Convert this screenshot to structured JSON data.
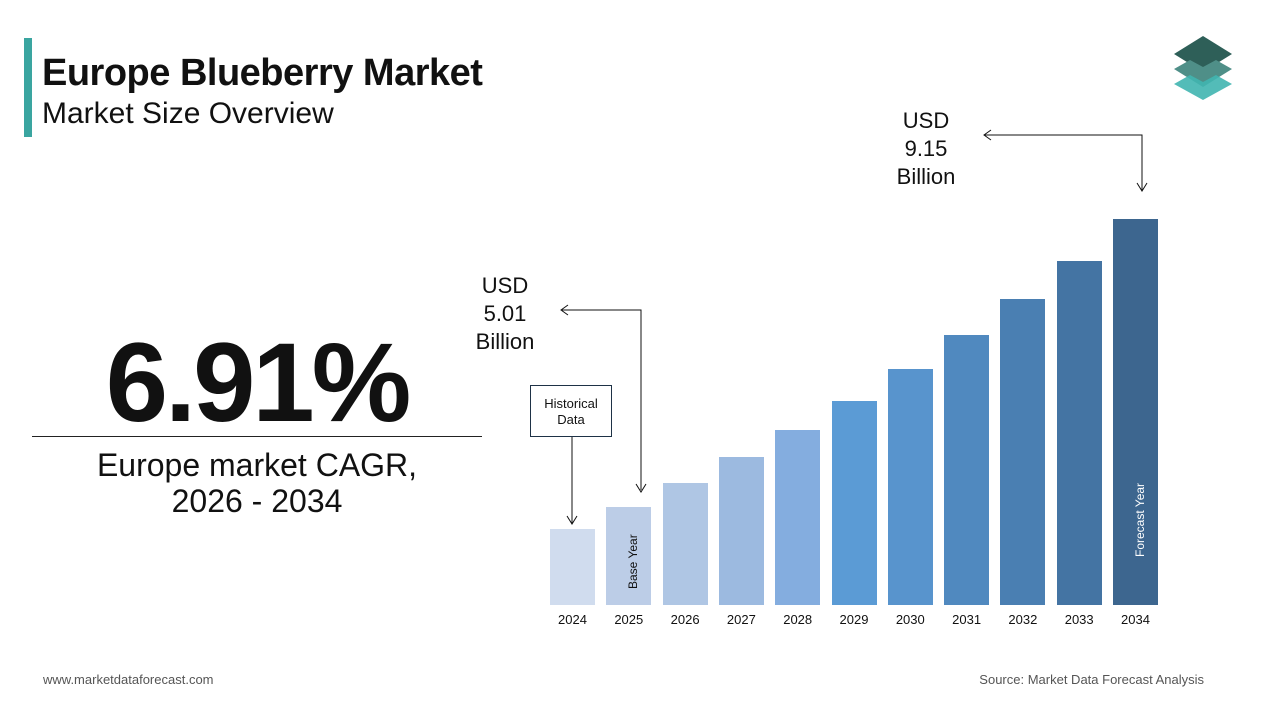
{
  "header": {
    "title": "Europe Blueberry Market",
    "subtitle": "Market Size Overview"
  },
  "kpi": {
    "value": "6.91%",
    "label_line1": "Europe market CAGR,",
    "label_line2": "2026 - 2034"
  },
  "annotations": {
    "start": {
      "line1": "USD",
      "line2": "5.01",
      "line3": "Billion"
    },
    "end": {
      "line1": "USD",
      "line2": "9.15",
      "line3": "Billion"
    },
    "historical": "Historical Data",
    "base_year": "Base Year",
    "forecast_year": "Forecast Year"
  },
  "footer": {
    "website": "www.marketdataforecast.com",
    "source": "Source: Market Data Forecast Analysis"
  },
  "logo": {
    "colors": [
      "#2e5f58",
      "#4f8f88",
      "#40b5b0"
    ]
  },
  "chart_data": {
    "type": "bar",
    "categories": [
      "2024",
      "2025",
      "2026",
      "2027",
      "2028",
      "2029",
      "2030",
      "2031",
      "2032",
      "2033",
      "2034"
    ],
    "values": [
      4.69,
      5.01,
      5.36,
      5.73,
      6.12,
      6.54,
      7.0,
      7.48,
      8.0,
      8.55,
      9.15
    ],
    "unit": "USD Billion",
    "colors": [
      "#d0dcee",
      "#bccde7",
      "#afc6e4",
      "#9cbae0",
      "#84addf",
      "#5b9bd5",
      "#5894cd",
      "#5089bf",
      "#4a7fb2",
      "#4474a3",
      "#3d668f"
    ],
    "grid": false,
    "legend": "none"
  }
}
